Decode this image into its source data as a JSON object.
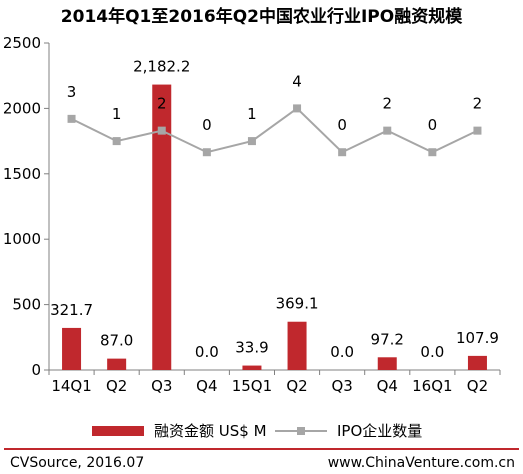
{
  "title": "2014年Q1至2016年Q2中国农业行业IPO融资规模",
  "colors": {
    "bar": "#c0282d",
    "line": "#a6a6a6",
    "axis": "#808080",
    "footer_rule": "#c0282d"
  },
  "chart_data": {
    "type": "bar",
    "title": "2014年Q1至2016年Q2中国农业行业IPO融资规模",
    "xlabel": "",
    "ylabel": "",
    "ylim": [
      0,
      2500
    ],
    "y_ticks": [
      0,
      500,
      1000,
      1500,
      2000,
      2500
    ],
    "categories": [
      "14Q1",
      "Q2",
      "Q3",
      "Q4",
      "15Q1",
      "Q2",
      "Q3",
      "Q4",
      "16Q1",
      "Q2"
    ],
    "series": [
      {
        "name": "融资金额 US$ M",
        "type": "bar",
        "values": [
          321.7,
          87.0,
          2182.2,
          0.0,
          33.9,
          369.1,
          0.0,
          97.2,
          0.0,
          107.9
        ],
        "labels": [
          "321.7",
          "87.0",
          "2,182.2",
          "0.0",
          "33.9",
          "369.1",
          "0.0",
          "97.2",
          "0.0",
          "107.9"
        ]
      },
      {
        "name": "IPO企业数量",
        "type": "line",
        "values": [
          3,
          1,
          2,
          0,
          1,
          4,
          0,
          2,
          0,
          2
        ],
        "labels": [
          "3",
          "1",
          "2",
          "0",
          "1",
          "4",
          "0",
          "2",
          "0",
          "2"
        ],
        "plotted_on_primary_axis_as": [
          1920,
          1750,
          1830,
          1665,
          1750,
          2000,
          1665,
          1830,
          1665,
          1830
        ]
      }
    ],
    "legend": "bottom",
    "grid": false
  },
  "footer": {
    "source": "CVSource, 2016.07",
    "website": "www.ChinaVenture.com.cn"
  }
}
